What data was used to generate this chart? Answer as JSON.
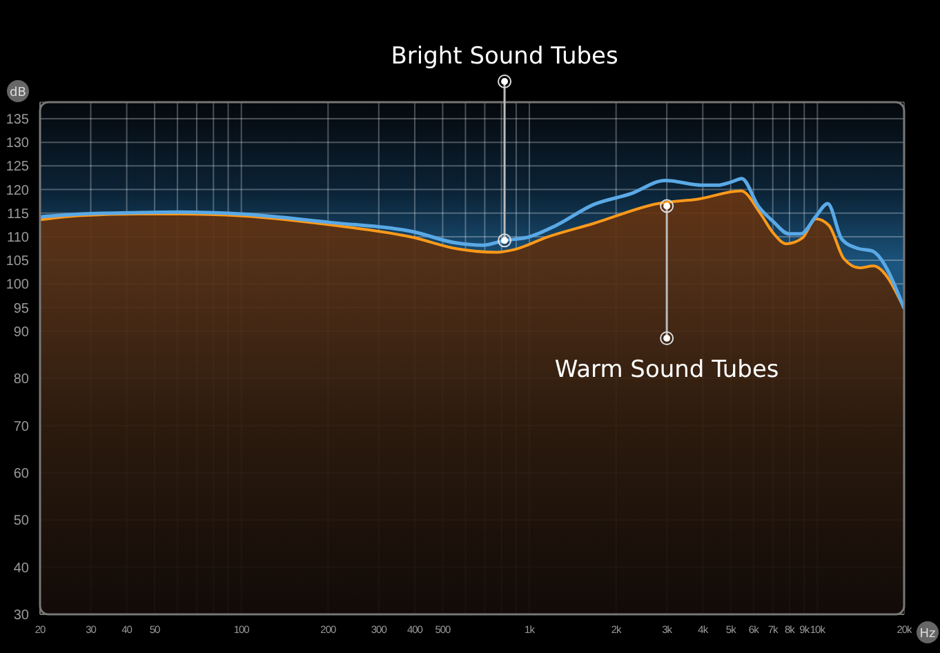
{
  "chart_data": {
    "type": "area",
    "xlabel": "Hz",
    "ylabel": "dB",
    "log": "x",
    "grid": true,
    "xlim": [
      20,
      20000
    ],
    "xticks": [
      20,
      30,
      40,
      50,
      {
        "value": 60,
        "label": null
      },
      {
        "value": 70,
        "label": null
      },
      {
        "value": 80,
        "label": null
      },
      {
        "value": 90,
        "label": null
      },
      100,
      200,
      300,
      400,
      500,
      {
        "value": 600,
        "label": null
      },
      {
        "value": 700,
        "label": null
      },
      {
        "value": 800,
        "label": null
      },
      {
        "value": 900,
        "label": null
      },
      {
        "value": 1000,
        "label": "1k"
      },
      {
        "value": 2000,
        "label": "2k"
      },
      {
        "value": 3000,
        "label": "3k"
      },
      {
        "value": 4000,
        "label": "4k"
      },
      {
        "value": 5000,
        "label": "5k"
      },
      {
        "value": 6000,
        "label": "6k"
      },
      {
        "value": 7000,
        "label": "7k"
      },
      {
        "value": 8000,
        "label": "8k"
      },
      {
        "value": 9000,
        "label": "9k"
      },
      {
        "value": 10000,
        "label": "10k"
      },
      {
        "value": 20000,
        "label": "20k"
      }
    ],
    "ylim": [
      30,
      138.5
    ],
    "yticks": [
      30,
      40,
      50,
      60,
      70,
      80,
      90,
      95,
      100,
      105,
      110,
      115,
      120,
      125,
      130,
      135
    ],
    "series": [
      {
        "type": "line",
        "color": "#5aa9e6",
        "x": [
          20,
          28,
          44,
          61,
          100,
          204,
          398,
          554,
          690,
          820,
          990,
          1240,
          1670,
          2250,
          2960,
          4020,
          4500,
          5030,
          5460,
          6260,
          7000,
          7960,
          8760,
          9880,
          10860,
          12180,
          13840,
          15460,
          20000
        ],
        "values": [
          114.2,
          114.8,
          115.1,
          115.2,
          114.8,
          113.0,
          111.0,
          108.7,
          108.2,
          109.2,
          109.9,
          112.4,
          116.8,
          119.1,
          121.9,
          120.9,
          120.9,
          121.6,
          122.3,
          116.3,
          113.3,
          110.6,
          110.6,
          114.3,
          117.0,
          109.4,
          107.5,
          107.0,
          94.8
        ]
      },
      {
        "color": "#ff9a1a",
        "x": [
          20,
          28,
          44,
          61,
          100,
          204,
          398,
          554,
          770,
          890,
          1150,
          1670,
          2790,
          3880,
          5430,
          6360,
          7000,
          7810,
          8860,
          9880,
          10960,
          12370,
          14000,
          15650,
          20000
        ],
        "values": [
          113.6,
          114.5,
          114.8,
          114.8,
          114.4,
          112.5,
          109.8,
          107.5,
          106.7,
          107.3,
          109.9,
          112.8,
          117.0,
          118.0,
          119.7,
          114.8,
          110.9,
          108.5,
          109.7,
          113.8,
          112.4,
          105.3,
          103.4,
          103.8,
          94.8
        ]
      }
    ],
    "annotations": [
      {
        "text": "Bright Sound Tubes",
        "x": 820,
        "y": 109.2
      },
      {
        "text": "Warm Sound Tubes",
        "x": 3000,
        "y": 116.5
      }
    ]
  }
}
